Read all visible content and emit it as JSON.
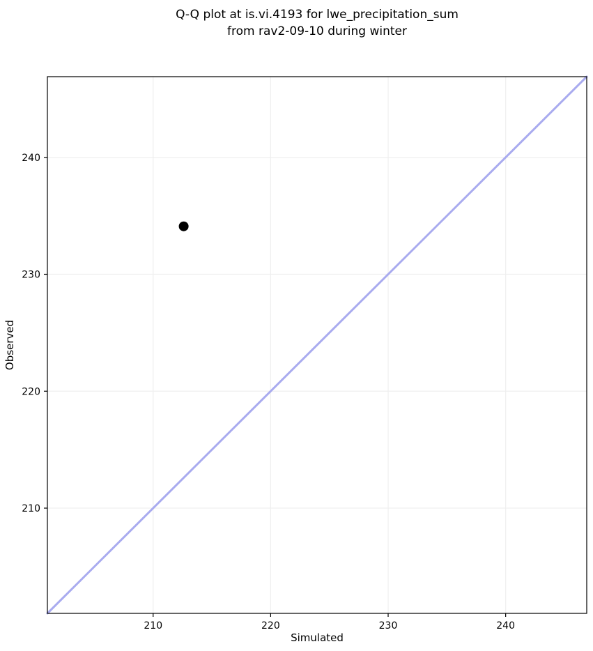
{
  "figure": {
    "background": "#ffffff"
  },
  "chart_data": {
    "type": "scatter",
    "title": "Q-Q plot at is.vi.4193 for lwe_precipitation_sum from rav2-09-10 during winter",
    "title_lines": [
      "Q-Q plot at is.vi.4193 for lwe_precipitation_sum",
      "from rav2-09-10 during winter"
    ],
    "xlabel": "Simulated",
    "ylabel": "Observed",
    "xlim": [
      201.0,
      246.9
    ],
    "ylim": [
      201.0,
      246.9
    ],
    "xticks": [
      210,
      220,
      230,
      240
    ],
    "yticks": [
      210,
      220,
      230,
      240
    ],
    "grid": true,
    "legend": "none",
    "points": [
      {
        "x": 212.6,
        "y": 234.1
      }
    ],
    "identity_line": {
      "from": [
        201.0,
        201.0
      ],
      "to": [
        246.9,
        246.9
      ]
    },
    "colors": {
      "point": "#000000",
      "identity_line": "#a9abef",
      "grid": "#efefef",
      "spine": "#000000",
      "text": "#000000"
    }
  }
}
